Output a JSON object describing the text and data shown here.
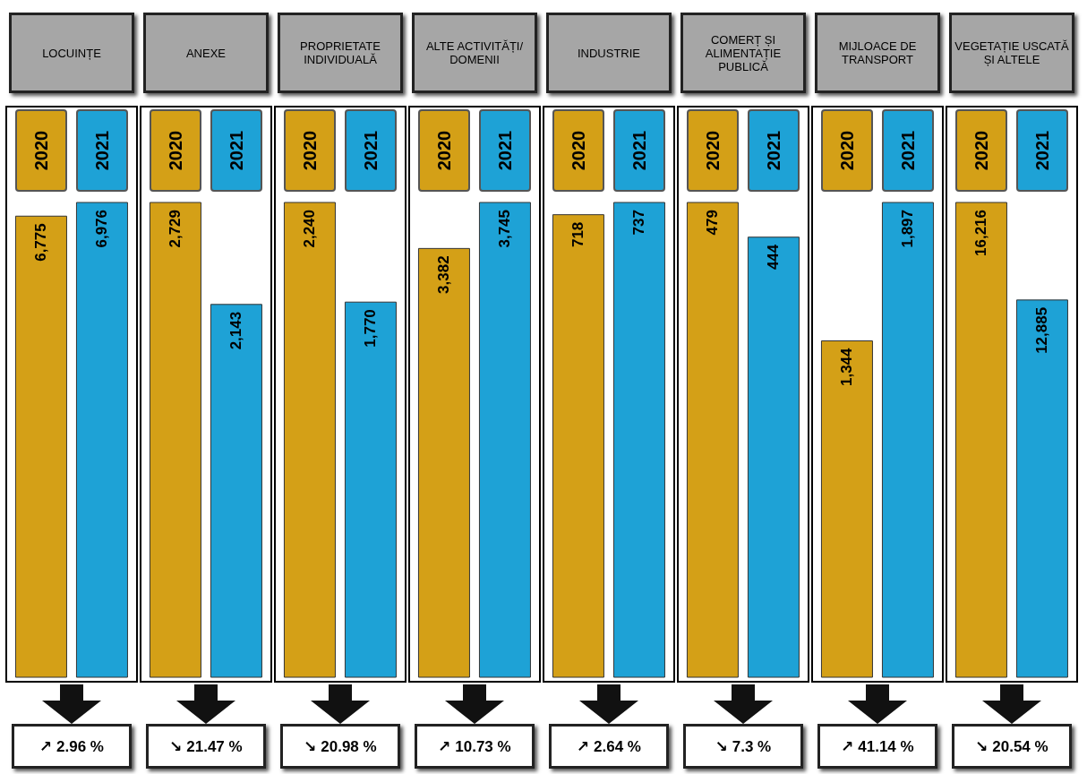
{
  "chart_data": [
    {
      "type": "bar",
      "title": "LOCUINȚE",
      "categories": [
        "2020",
        "2021"
      ],
      "colors": [
        "#d4a017",
        "#1ea2d6"
      ],
      "values": [
        6775,
        6976
      ],
      "value_labels": [
        "6,775",
        "6,976"
      ],
      "annotations": [
        "↗ 2.96 %"
      ]
    },
    {
      "type": "bar",
      "title": "ANEXE",
      "categories": [
        "2020",
        "2021"
      ],
      "colors": [
        "#d4a017",
        "#1ea2d6"
      ],
      "values": [
        2729,
        2143
      ],
      "value_labels": [
        "2,729",
        "2,143"
      ],
      "annotations": [
        "↘ 21.47 %"
      ]
    },
    {
      "type": "bar",
      "title": "PROPRIETATE INDIVIDUALĂ",
      "categories": [
        "2020",
        "2021"
      ],
      "colors": [
        "#d4a017",
        "#1ea2d6"
      ],
      "values": [
        2240,
        1770
      ],
      "value_labels": [
        "2,240",
        "1,770"
      ],
      "annotations": [
        "↘ 20.98 %"
      ]
    },
    {
      "type": "bar",
      "title": "ALTE ACTIVITĂȚI/ DOMENII",
      "categories": [
        "2020",
        "2021"
      ],
      "colors": [
        "#d4a017",
        "#1ea2d6"
      ],
      "values": [
        3382,
        3745
      ],
      "value_labels": [
        "3,382",
        "3,745"
      ],
      "annotations": [
        "↗ 10.73 %"
      ]
    },
    {
      "type": "bar",
      "title": "INDUSTRIE",
      "categories": [
        "2020",
        "2021"
      ],
      "colors": [
        "#d4a017",
        "#1ea2d6"
      ],
      "values": [
        718,
        737
      ],
      "value_labels": [
        "718",
        "737"
      ],
      "annotations": [
        "↗ 2.64 %"
      ]
    },
    {
      "type": "bar",
      "title": "COMERȚ ȘI ALIMENTAȚIE PUBLICĂ",
      "categories": [
        "2020",
        "2021"
      ],
      "colors": [
        "#d4a017",
        "#1ea2d6"
      ],
      "values": [
        479,
        444
      ],
      "value_labels": [
        "479",
        "444"
      ],
      "annotations": [
        "↘ 7.3 %"
      ]
    },
    {
      "type": "bar",
      "title": "MIJLOACE DE TRANSPORT",
      "categories": [
        "2020",
        "2021"
      ],
      "colors": [
        "#d4a017",
        "#1ea2d6"
      ],
      "values": [
        1344,
        1897
      ],
      "value_labels": [
        "1,344",
        "1,897"
      ],
      "annotations": [
        "↗ 41.14 %"
      ]
    },
    {
      "type": "bar",
      "title": "VEGETAȚIE USCATĂ ȘI ALTELE",
      "categories": [
        "2020",
        "2021"
      ],
      "colors": [
        "#d4a017",
        "#1ea2d6"
      ],
      "values": [
        16216,
        12885
      ],
      "value_labels": [
        "16,216",
        "12,885"
      ],
      "annotations": [
        "↘ 20.54 %"
      ]
    }
  ]
}
